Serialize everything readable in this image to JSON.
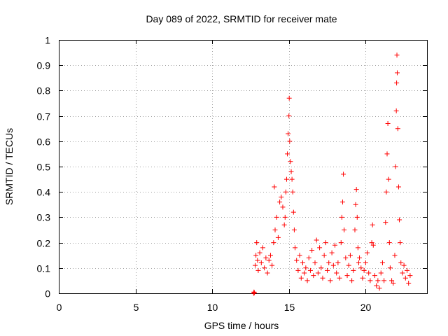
{
  "chart_data": {
    "type": "scatter",
    "title": "Day 089 of 2022, SRMTID for receiver mate",
    "xlabel": "GPS time / hours",
    "ylabel": "SRMTID / TECUs",
    "xlim": [
      0,
      24
    ],
    "ylim": [
      0,
      1
    ],
    "xticks": [
      0,
      5,
      10,
      15,
      20
    ],
    "xtick_labels": [
      "0",
      "5",
      "10",
      "15",
      "20"
    ],
    "yticks": [
      0,
      0.1,
      0.2,
      0.3,
      0.4,
      0.5,
      0.6,
      0.7,
      0.8,
      0.9,
      1
    ],
    "ytick_labels": [
      "0",
      "0.1",
      "0.2",
      "0.3",
      "0.4",
      "0.5",
      "0.6",
      "0.7",
      "0.8",
      "0.9",
      "1"
    ],
    "grid": true,
    "marker": "+",
    "color": "#ff0000",
    "series": [
      {
        "name": "SRMTID",
        "points": [
          [
            12.7,
            0.0
          ],
          [
            12.72,
            0.005
          ],
          [
            12.75,
            0.002
          ],
          [
            12.8,
            0.11
          ],
          [
            12.85,
            0.15
          ],
          [
            12.9,
            0.2
          ],
          [
            12.95,
            0.13
          ],
          [
            13.0,
            0.09
          ],
          [
            13.1,
            0.16
          ],
          [
            13.2,
            0.12
          ],
          [
            13.3,
            0.18
          ],
          [
            13.4,
            0.1
          ],
          [
            13.5,
            0.14
          ],
          [
            13.6,
            0.08
          ],
          [
            13.7,
            0.13
          ],
          [
            13.8,
            0.15
          ],
          [
            13.9,
            0.11
          ],
          [
            14.0,
            0.2
          ],
          [
            14.05,
            0.42
          ],
          [
            14.1,
            0.25
          ],
          [
            14.2,
            0.3
          ],
          [
            14.3,
            0.22
          ],
          [
            14.4,
            0.36
          ],
          [
            14.5,
            0.38
          ],
          [
            14.6,
            0.34
          ],
          [
            14.7,
            0.27
          ],
          [
            14.75,
            0.3
          ],
          [
            14.8,
            0.4
          ],
          [
            14.85,
            0.45
          ],
          [
            14.9,
            0.55
          ],
          [
            14.95,
            0.63
          ],
          [
            15.0,
            0.7
          ],
          [
            15.02,
            0.77
          ],
          [
            15.05,
            0.6
          ],
          [
            15.1,
            0.52
          ],
          [
            15.15,
            0.48
          ],
          [
            15.2,
            0.45
          ],
          [
            15.25,
            0.4
          ],
          [
            15.3,
            0.32
          ],
          [
            15.35,
            0.25
          ],
          [
            15.4,
            0.18
          ],
          [
            15.5,
            0.13
          ],
          [
            15.6,
            0.09
          ],
          [
            15.7,
            0.15
          ],
          [
            15.8,
            0.06
          ],
          [
            15.9,
            0.12
          ],
          [
            16.0,
            0.08
          ],
          [
            16.1,
            0.1
          ],
          [
            16.2,
            0.05
          ],
          [
            16.3,
            0.14
          ],
          [
            16.4,
            0.09
          ],
          [
            16.5,
            0.17
          ],
          [
            16.6,
            0.07
          ],
          [
            16.7,
            0.12
          ],
          [
            16.8,
            0.21
          ],
          [
            16.9,
            0.08
          ],
          [
            17.0,
            0.18
          ],
          [
            17.1,
            0.1
          ],
          [
            17.2,
            0.06
          ],
          [
            17.3,
            0.15
          ],
          [
            17.4,
            0.2
          ],
          [
            17.5,
            0.09
          ],
          [
            17.6,
            0.12
          ],
          [
            17.7,
            0.05
          ],
          [
            17.8,
            0.16
          ],
          [
            17.9,
            0.11
          ],
          [
            18.0,
            0.19
          ],
          [
            18.1,
            0.08
          ],
          [
            18.2,
            0.12
          ],
          [
            18.3,
            0.06
          ],
          [
            18.4,
            0.2
          ],
          [
            18.45,
            0.3
          ],
          [
            18.5,
            0.36
          ],
          [
            18.55,
            0.47
          ],
          [
            18.6,
            0.25
          ],
          [
            18.7,
            0.14
          ],
          [
            18.8,
            0.07
          ],
          [
            18.9,
            0.11
          ],
          [
            19.0,
            0.15
          ],
          [
            19.1,
            0.05
          ],
          [
            19.2,
            0.09
          ],
          [
            19.3,
            0.25
          ],
          [
            19.35,
            0.35
          ],
          [
            19.4,
            0.41
          ],
          [
            19.45,
            0.3
          ],
          [
            19.5,
            0.18
          ],
          [
            19.55,
            0.12
          ],
          [
            19.6,
            0.14
          ],
          [
            19.7,
            0.1
          ],
          [
            19.8,
            0.06
          ],
          [
            19.9,
            0.09
          ],
          [
            20.0,
            0.12
          ],
          [
            20.1,
            0.16
          ],
          [
            20.2,
            0.08
          ],
          [
            20.3,
            0.05
          ],
          [
            20.4,
            0.2
          ],
          [
            20.45,
            0.27
          ],
          [
            20.5,
            0.19
          ],
          [
            20.6,
            0.07
          ],
          [
            20.7,
            0.03
          ],
          [
            20.8,
            0.05
          ],
          [
            20.9,
            0.02
          ],
          [
            21.0,
            0.08
          ],
          [
            21.1,
            0.12
          ],
          [
            21.2,
            0.05
          ],
          [
            21.3,
            0.28
          ],
          [
            21.35,
            0.4
          ],
          [
            21.4,
            0.55
          ],
          [
            21.45,
            0.67
          ],
          [
            21.5,
            0.45
          ],
          [
            21.55,
            0.2
          ],
          [
            21.6,
            0.1
          ],
          [
            21.7,
            0.05
          ],
          [
            21.8,
            0.04
          ],
          [
            21.9,
            0.15
          ],
          [
            21.95,
            0.5
          ],
          [
            22.0,
            0.72
          ],
          [
            22.02,
            0.83
          ],
          [
            22.04,
            0.94
          ],
          [
            22.06,
            0.87
          ],
          [
            22.1,
            0.65
          ],
          [
            22.15,
            0.42
          ],
          [
            22.2,
            0.29
          ],
          [
            22.25,
            0.2
          ],
          [
            22.3,
            0.12
          ],
          [
            22.4,
            0.08
          ],
          [
            22.5,
            0.11
          ],
          [
            22.6,
            0.06
          ],
          [
            22.7,
            0.09
          ],
          [
            22.8,
            0.04
          ],
          [
            22.9,
            0.07
          ]
        ]
      }
    ]
  }
}
